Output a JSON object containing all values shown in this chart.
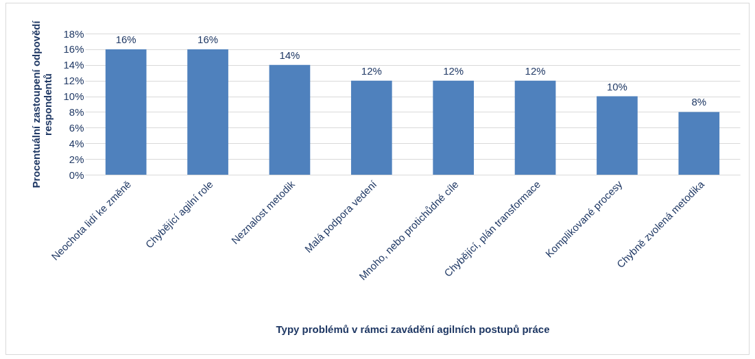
{
  "chart_data": {
    "type": "bar",
    "xlabel": "Typy problémů v rámci zavádění agilních postupů práce",
    "ylabel": "Procentuální zastoupení odpovědí respondentů",
    "categories": [
      "Neochota lidí ke změně",
      "Chybějící agilní role",
      "Neznalost metodik",
      "Malá podpora vedení",
      "Mnoho, nebo protichůdné cíle",
      "Chybějící, plán transformace",
      "Komplikované procesy",
      "Chybně zvolená metodika"
    ],
    "values": [
      16,
      16,
      14,
      12,
      12,
      12,
      10,
      8
    ],
    "value_labels": [
      "16%",
      "16%",
      "14%",
      "12%",
      "12%",
      "12%",
      "10%",
      "8%"
    ],
    "color": "#4f81bd",
    "ylim": [
      0,
      18
    ],
    "yticks": [
      {
        "value": 0,
        "label": "0%"
      },
      {
        "value": 2,
        "label": "2%"
      },
      {
        "value": 4,
        "label": "4%"
      },
      {
        "value": 6,
        "label": "6%"
      },
      {
        "value": 8,
        "label": "8%"
      },
      {
        "value": 10,
        "label": "10%"
      },
      {
        "value": 12,
        "label": "12%"
      },
      {
        "value": 14,
        "label": "14%"
      },
      {
        "value": 16,
        "label": "16%"
      },
      {
        "value": 18,
        "label": "18%"
      }
    ],
    "grid": "y"
  }
}
